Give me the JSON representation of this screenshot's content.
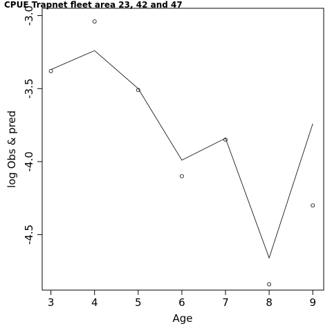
{
  "chart_data": {
    "type": "line",
    "title": "CPUE Trapnet fleet area 23, 42 and 47",
    "xlabel": "Age",
    "ylabel": "log Obs & pred",
    "xlim": [
      2.8,
      9.25
    ],
    "ylim": [
      -4.88,
      -2.95
    ],
    "x_ticks": [
      3,
      4,
      5,
      6,
      7,
      8,
      9
    ],
    "x_tick_labels": [
      "3",
      "4",
      "5",
      "6",
      "7",
      "8",
      "9"
    ],
    "y_ticks": [
      -3.0,
      -3.5,
      -4.0,
      -4.5
    ],
    "y_tick_labels": [
      "-3.0",
      "-3.5",
      "-4.0",
      "-4.5"
    ],
    "grid": false,
    "series": [
      {
        "style": "points",
        "x": [
          3,
          4,
          5,
          6,
          7,
          8,
          9
        ],
        "y": [
          -3.38,
          -3.04,
          -3.51,
          -4.1,
          -3.85,
          -4.84,
          -4.3
        ]
      },
      {
        "style": "line",
        "x": [
          3,
          4,
          5,
          6,
          7,
          8,
          9
        ],
        "y": [
          -3.37,
          -3.24,
          -3.5,
          -3.99,
          -3.84,
          -4.66,
          -3.74
        ]
      }
    ]
  }
}
